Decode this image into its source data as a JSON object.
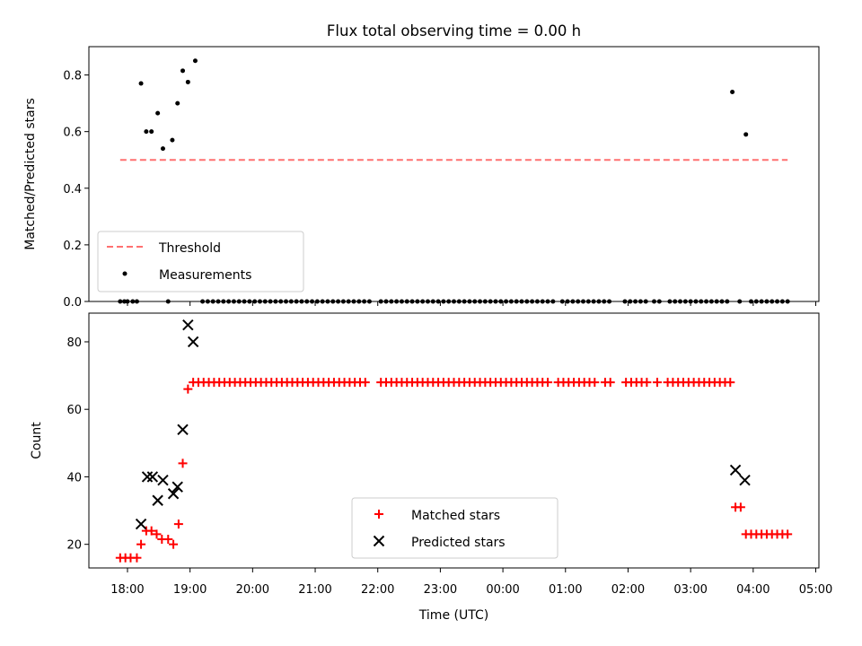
{
  "chart_data": [
    {
      "type": "scatter",
      "title": "Flux total observing time = 0.00 h",
      "xlabel": "",
      "ylabel": "Matched/Predicted stars",
      "ylim": [
        0,
        0.9
      ],
      "yticks": [
        0,
        0.2,
        0.4,
        0.6,
        0.8
      ],
      "ytick_labels": [
        "0.0",
        "0.2",
        "0.4",
        "0.6",
        "0.8"
      ],
      "threshold": {
        "label": "Threshold",
        "value": 0.5,
        "x_start": "17:53",
        "x_end": "04:33",
        "color": "#ff7070",
        "style": "dashed"
      },
      "legend": {
        "placement": "lower-left",
        "entries": [
          "Threshold",
          "Measurements"
        ]
      },
      "series": [
        {
          "name": "Measurements",
          "color": "#000000",
          "marker": "dot",
          "points": [
            [
              "17:53",
              0
            ],
            [
              "17:57",
              0
            ],
            [
              "18:00",
              0
            ],
            [
              "18:05",
              0
            ],
            [
              "18:09",
              0
            ],
            [
              "18:13",
              0.77
            ],
            [
              "18:18",
              0.6
            ],
            [
              "18:23",
              0.6
            ],
            [
              "18:29",
              0.665
            ],
            [
              "18:34",
              0.54
            ],
            [
              "18:39",
              0
            ],
            [
              "18:43",
              0.57
            ],
            [
              "18:48",
              0.7
            ],
            [
              "18:53",
              0.815
            ],
            [
              "18:58",
              0.775
            ],
            [
              "19:05",
              0.85
            ],
            [
              "19:12",
              0
            ],
            [
              "19:17",
              0
            ],
            [
              "19:22",
              0
            ],
            [
              "19:27",
              0
            ],
            [
              "19:32",
              0
            ],
            [
              "19:37",
              0
            ],
            [
              "19:42",
              0
            ],
            [
              "19:47",
              0
            ],
            [
              "19:52",
              0
            ],
            [
              "19:57",
              0
            ],
            [
              "20:02",
              0
            ],
            [
              "20:07",
              0
            ],
            [
              "20:12",
              0
            ],
            [
              "20:17",
              0
            ],
            [
              "20:22",
              0
            ],
            [
              "20:27",
              0
            ],
            [
              "20:32",
              0
            ],
            [
              "20:37",
              0
            ],
            [
              "20:42",
              0
            ],
            [
              "20:47",
              0
            ],
            [
              "20:52",
              0
            ],
            [
              "20:57",
              0
            ],
            [
              "21:02",
              0
            ],
            [
              "21:07",
              0
            ],
            [
              "21:12",
              0
            ],
            [
              "21:17",
              0
            ],
            [
              "21:22",
              0
            ],
            [
              "21:27",
              0
            ],
            [
              "21:32",
              0
            ],
            [
              "21:37",
              0
            ],
            [
              "21:42",
              0
            ],
            [
              "21:47",
              0
            ],
            [
              "21:52",
              0
            ],
            [
              "22:03",
              0
            ],
            [
              "22:08",
              0
            ],
            [
              "22:13",
              0
            ],
            [
              "22:18",
              0
            ],
            [
              "22:23",
              0
            ],
            [
              "22:28",
              0
            ],
            [
              "22:33",
              0
            ],
            [
              "22:38",
              0
            ],
            [
              "22:43",
              0
            ],
            [
              "22:48",
              0
            ],
            [
              "22:53",
              0
            ],
            [
              "22:58",
              0
            ],
            [
              "23:03",
              0
            ],
            [
              "23:08",
              0
            ],
            [
              "23:13",
              0
            ],
            [
              "23:18",
              0
            ],
            [
              "23:23",
              0
            ],
            [
              "23:28",
              0
            ],
            [
              "23:33",
              0
            ],
            [
              "23:38",
              0
            ],
            [
              "23:43",
              0
            ],
            [
              "23:48",
              0
            ],
            [
              "23:53",
              0
            ],
            [
              "23:58",
              0
            ],
            [
              "00:03",
              0
            ],
            [
              "00:08",
              0
            ],
            [
              "00:13",
              0
            ],
            [
              "00:18",
              0
            ],
            [
              "00:23",
              0
            ],
            [
              "00:28",
              0
            ],
            [
              "00:33",
              0
            ],
            [
              "00:38",
              0
            ],
            [
              "00:43",
              0
            ],
            [
              "00:48",
              0
            ],
            [
              "00:57",
              0
            ],
            [
              "01:02",
              0
            ],
            [
              "01:07",
              0
            ],
            [
              "01:12",
              0
            ],
            [
              "01:17",
              0
            ],
            [
              "01:22",
              0
            ],
            [
              "01:27",
              0
            ],
            [
              "01:32",
              0
            ],
            [
              "01:37",
              0
            ],
            [
              "01:42",
              0
            ],
            [
              "01:57",
              0
            ],
            [
              "02:02",
              0
            ],
            [
              "02:07",
              0
            ],
            [
              "02:12",
              0
            ],
            [
              "02:17",
              0
            ],
            [
              "02:25",
              0
            ],
            [
              "02:30",
              0
            ],
            [
              "02:40",
              0
            ],
            [
              "02:45",
              0
            ],
            [
              "02:50",
              0
            ],
            [
              "02:55",
              0
            ],
            [
              "03:00",
              0
            ],
            [
              "03:05",
              0
            ],
            [
              "03:10",
              0
            ],
            [
              "03:15",
              0
            ],
            [
              "03:20",
              0
            ],
            [
              "03:25",
              0
            ],
            [
              "03:30",
              0
            ],
            [
              "03:35",
              0
            ],
            [
              "03:40",
              0.74
            ],
            [
              "03:47",
              0
            ],
            [
              "03:53",
              0.59
            ],
            [
              "03:58",
              0
            ],
            [
              "04:03",
              0
            ],
            [
              "04:08",
              0
            ],
            [
              "04:13",
              0
            ],
            [
              "04:18",
              0
            ],
            [
              "04:23",
              0
            ],
            [
              "04:28",
              0
            ],
            [
              "04:33",
              0
            ]
          ]
        }
      ]
    },
    {
      "type": "scatter",
      "title": "",
      "xlabel": "Time (UTC)",
      "ylabel": "Count",
      "ylim": [
        13,
        88.5
      ],
      "yticks": [
        20,
        40,
        60,
        80
      ],
      "ytick_labels": [
        "20",
        "40",
        "60",
        "80"
      ],
      "x_range": [
        "17:23",
        "05:03"
      ],
      "xtick_labels": [
        "18:00",
        "19:00",
        "20:00",
        "21:00",
        "22:00",
        "23:00",
        "00:00",
        "01:00",
        "02:00",
        "03:00",
        "04:00",
        "05:00"
      ],
      "legend": {
        "placement": "lower-center",
        "entries": [
          "Matched stars",
          "Predicted stars"
        ]
      },
      "series": [
        {
          "name": "Matched stars",
          "color": "#ff0000",
          "marker": "plus",
          "points": [
            [
              "17:53",
              16
            ],
            [
              "17:58",
              16
            ],
            [
              "18:03",
              16
            ],
            [
              "18:09",
              16
            ],
            [
              "18:13",
              20
            ],
            [
              "18:18",
              24
            ],
            [
              "18:23",
              24
            ],
            [
              "18:28",
              23
            ],
            [
              "18:33",
              21.5
            ],
            [
              "18:39",
              21.5
            ],
            [
              "18:44",
              20
            ],
            [
              "18:49",
              26
            ],
            [
              "18:53",
              44
            ],
            [
              "18:58",
              66
            ],
            [
              "19:03",
              68
            ],
            [
              "19:08",
              68
            ],
            [
              "19:13",
              68
            ],
            [
              "19:18",
              68
            ],
            [
              "19:23",
              68
            ],
            [
              "19:28",
              68
            ],
            [
              "19:33",
              68
            ],
            [
              "19:38",
              68
            ],
            [
              "19:43",
              68
            ],
            [
              "19:48",
              68
            ],
            [
              "19:53",
              68
            ],
            [
              "19:58",
              68
            ],
            [
              "20:03",
              68
            ],
            [
              "20:08",
              68
            ],
            [
              "20:13",
              68
            ],
            [
              "20:18",
              68
            ],
            [
              "20:23",
              68
            ],
            [
              "20:28",
              68
            ],
            [
              "20:33",
              68
            ],
            [
              "20:38",
              68
            ],
            [
              "20:43",
              68
            ],
            [
              "20:48",
              68
            ],
            [
              "20:53",
              68
            ],
            [
              "20:58",
              68
            ],
            [
              "21:03",
              68
            ],
            [
              "21:08",
              68
            ],
            [
              "21:13",
              68
            ],
            [
              "21:18",
              68
            ],
            [
              "21:23",
              68
            ],
            [
              "21:28",
              68
            ],
            [
              "21:33",
              68
            ],
            [
              "21:38",
              68
            ],
            [
              "21:43",
              68
            ],
            [
              "21:48",
              68
            ],
            [
              "22:03",
              68
            ],
            [
              "22:08",
              68
            ],
            [
              "22:13",
              68
            ],
            [
              "22:18",
              68
            ],
            [
              "22:23",
              68
            ],
            [
              "22:28",
              68
            ],
            [
              "22:33",
              68
            ],
            [
              "22:38",
              68
            ],
            [
              "22:43",
              68
            ],
            [
              "22:48",
              68
            ],
            [
              "22:53",
              68
            ],
            [
              "22:58",
              68
            ],
            [
              "23:03",
              68
            ],
            [
              "23:08",
              68
            ],
            [
              "23:13",
              68
            ],
            [
              "23:18",
              68
            ],
            [
              "23:23",
              68
            ],
            [
              "23:28",
              68
            ],
            [
              "23:33",
              68
            ],
            [
              "23:38",
              68
            ],
            [
              "23:43",
              68
            ],
            [
              "23:48",
              68
            ],
            [
              "23:53",
              68
            ],
            [
              "23:58",
              68
            ],
            [
              "00:03",
              68
            ],
            [
              "00:08",
              68
            ],
            [
              "00:13",
              68
            ],
            [
              "00:18",
              68
            ],
            [
              "00:23",
              68
            ],
            [
              "00:28",
              68
            ],
            [
              "00:33",
              68
            ],
            [
              "00:38",
              68
            ],
            [
              "00:43",
              68
            ],
            [
              "00:53",
              68
            ],
            [
              "00:58",
              68
            ],
            [
              "01:03",
              68
            ],
            [
              "01:08",
              68
            ],
            [
              "01:13",
              68
            ],
            [
              "01:18",
              68
            ],
            [
              "01:23",
              68
            ],
            [
              "01:28",
              68
            ],
            [
              "01:38",
              68
            ],
            [
              "01:43",
              68
            ],
            [
              "01:58",
              68
            ],
            [
              "02:03",
              68
            ],
            [
              "02:08",
              68
            ],
            [
              "02:13",
              68
            ],
            [
              "02:18",
              68
            ],
            [
              "02:28",
              68
            ],
            [
              "02:38",
              68
            ],
            [
              "02:43",
              68
            ],
            [
              "02:48",
              68
            ],
            [
              "02:53",
              68
            ],
            [
              "02:58",
              68
            ],
            [
              "03:03",
              68
            ],
            [
              "03:08",
              68
            ],
            [
              "03:13",
              68
            ],
            [
              "03:18",
              68
            ],
            [
              "03:23",
              68
            ],
            [
              "03:28",
              68
            ],
            [
              "03:33",
              68
            ],
            [
              "03:38",
              68
            ],
            [
              "03:43",
              31
            ],
            [
              "03:48",
              31
            ],
            [
              "03:53",
              23
            ],
            [
              "03:58",
              23
            ],
            [
              "04:03",
              23
            ],
            [
              "04:08",
              23
            ],
            [
              "04:13",
              23
            ],
            [
              "04:18",
              23
            ],
            [
              "04:23",
              23
            ],
            [
              "04:28",
              23
            ],
            [
              "04:33",
              23
            ]
          ]
        },
        {
          "name": "Predicted stars",
          "color": "#000000",
          "marker": "x",
          "points": [
            [
              "18:13",
              26
            ],
            [
              "18:19",
              40
            ],
            [
              "18:24",
              40
            ],
            [
              "18:29",
              33
            ],
            [
              "18:34",
              39
            ],
            [
              "18:44",
              35
            ],
            [
              "18:48",
              37
            ],
            [
              "18:53",
              54
            ],
            [
              "18:58",
              85
            ],
            [
              "19:03",
              80
            ],
            [
              "03:43",
              42
            ],
            [
              "03:52",
              39
            ]
          ]
        }
      ]
    }
  ]
}
